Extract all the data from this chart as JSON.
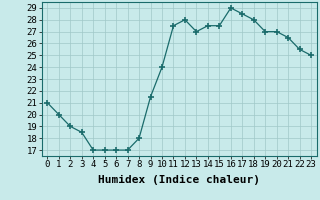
{
  "x": [
    0,
    1,
    2,
    3,
    4,
    5,
    6,
    7,
    8,
    9,
    10,
    11,
    12,
    13,
    14,
    15,
    16,
    17,
    18,
    19,
    20,
    21,
    22,
    23
  ],
  "y": [
    21,
    20,
    19,
    18.5,
    17,
    17,
    17,
    17,
    18,
    21.5,
    24,
    27.5,
    28,
    27,
    27.5,
    27.5,
    29,
    28.5,
    28,
    27,
    27,
    26.5,
    25.5,
    25
  ],
  "line_color": "#1a6b6b",
  "marker": "+",
  "marker_size": 4,
  "bg_color": "#c8eaea",
  "grid_color": "#a0c8c8",
  "xlabel": "Humidex (Indice chaleur)",
  "xlabel_fontsize": 8,
  "ylabel_ticks": [
    17,
    18,
    19,
    20,
    21,
    22,
    23,
    24,
    25,
    26,
    27,
    28,
    29
  ],
  "xlim": [
    -0.5,
    23.5
  ],
  "ylim": [
    16.5,
    29.5
  ],
  "tick_fontsize": 6.5
}
